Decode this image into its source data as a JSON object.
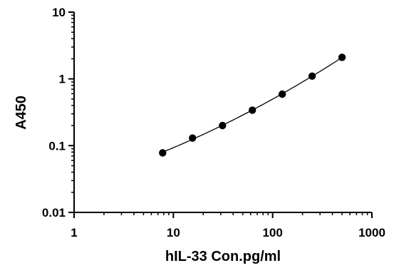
{
  "chart_data": {
    "type": "scatter",
    "title": "",
    "xlabel": "hIL-33 Con.pg/ml",
    "ylabel": "A450",
    "xscale": "log",
    "yscale": "log",
    "xlim": [
      1,
      1000
    ],
    "ylim": [
      0.01,
      10
    ],
    "x_ticks": [
      1,
      10,
      100,
      1000
    ],
    "x_tick_labels": [
      "1",
      "10",
      "100",
      "1000"
    ],
    "y_ticks": [
      0.01,
      0.1,
      1,
      10
    ],
    "y_tick_labels": [
      "0.01",
      "0.1",
      "1",
      "10"
    ],
    "grid": false,
    "legend": "none",
    "point_color": "#000000",
    "curve_color": "#000000",
    "series": [
      {
        "points": [
          {
            "x": 7.8,
            "y": 0.078
          },
          {
            "x": 15.6,
            "y": 0.13
          },
          {
            "x": 31.25,
            "y": 0.2
          },
          {
            "x": 62.5,
            "y": 0.34
          },
          {
            "x": 125,
            "y": 0.59
          },
          {
            "x": 250,
            "y": 1.1
          },
          {
            "x": 500,
            "y": 2.1
          }
        ],
        "fit_curve": true
      }
    ]
  }
}
